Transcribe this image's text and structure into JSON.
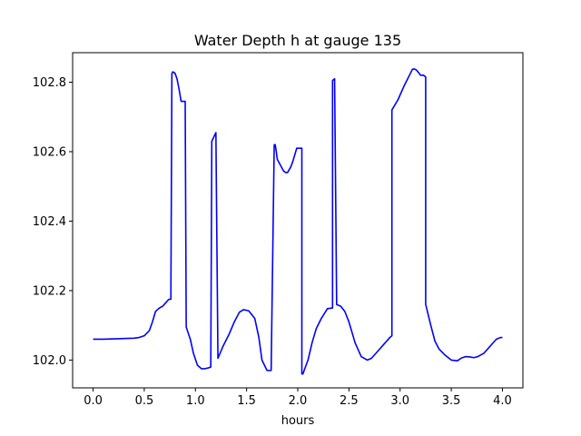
{
  "chart_data": {
    "type": "line",
    "title": "Water Depth h at gauge 135",
    "xlabel": "hours",
    "ylabel": "",
    "xlim": [
      -0.2,
      4.2
    ],
    "ylim": [
      101.92,
      102.885
    ],
    "xticks": [
      0.0,
      0.5,
      1.0,
      1.5,
      2.0,
      2.5,
      3.0,
      3.5,
      4.0
    ],
    "xtick_labels": [
      "0.0",
      "0.5",
      "1.0",
      "1.5",
      "2.0",
      "2.5",
      "3.0",
      "3.5",
      "4.0"
    ],
    "yticks": [
      102.0,
      102.2,
      102.4,
      102.6,
      102.8
    ],
    "ytick_labels": [
      "102.0",
      "102.2",
      "102.4",
      "102.6",
      "102.8"
    ],
    "grid": false,
    "series": [
      {
        "color": "#0000ff",
        "x": [
          0.0,
          0.1,
          0.2,
          0.3,
          0.4,
          0.45,
          0.5,
          0.55,
          0.58,
          0.61,
          0.64,
          0.66,
          0.68,
          0.71,
          0.74,
          0.76,
          0.77,
          0.78,
          0.78,
          0.8,
          0.82,
          0.84,
          0.86,
          0.9,
          0.91,
          0.91,
          0.95,
          0.98,
          1.02,
          1.06,
          1.09,
          1.12,
          1.15,
          1.16,
          1.16,
          1.2,
          1.2,
          1.22,
          1.27,
          1.33,
          1.38,
          1.43,
          1.47,
          1.52,
          1.58,
          1.62,
          1.65,
          1.7,
          1.74,
          1.77,
          1.78,
          1.79,
          1.8,
          1.86,
          1.88,
          1.9,
          1.93,
          1.95,
          1.99,
          2.04,
          2.04,
          2.05,
          2.1,
          2.14,
          2.18,
          2.23,
          2.29,
          2.34,
          2.34,
          2.36,
          2.36,
          2.38,
          2.42,
          2.46,
          2.5,
          2.56,
          2.62,
          2.68,
          2.72,
          2.78,
          2.84,
          2.9,
          2.92,
          2.92,
          2.98,
          3.04,
          3.1,
          3.12,
          3.14,
          3.16,
          3.18,
          3.2,
          3.21,
          3.23,
          3.25,
          3.25,
          3.3,
          3.34,
          3.38,
          3.44,
          3.5,
          3.56,
          3.6,
          3.64,
          3.68,
          3.72,
          3.76,
          3.82,
          3.88,
          3.94,
          3.98,
          4.0
        ],
        "y": [
          102.06,
          102.06,
          102.061,
          102.062,
          102.063,
          102.065,
          102.07,
          102.085,
          102.11,
          102.14,
          102.148,
          102.152,
          102.155,
          102.165,
          102.175,
          102.175,
          102.825,
          102.83,
          102.83,
          102.826,
          102.81,
          102.78,
          102.745,
          102.745,
          102.095,
          102.095,
          102.06,
          102.02,
          101.985,
          101.975,
          101.975,
          101.977,
          101.98,
          102.63,
          102.63,
          102.655,
          102.655,
          102.005,
          102.04,
          102.075,
          102.11,
          102.138,
          102.145,
          102.142,
          102.12,
          102.065,
          102.0,
          101.97,
          101.97,
          102.62,
          102.62,
          102.6,
          102.578,
          102.545,
          102.54,
          102.54,
          102.555,
          102.57,
          102.61,
          102.61,
          101.96,
          101.96,
          102.0,
          102.05,
          102.09,
          102.12,
          102.148,
          102.15,
          102.805,
          102.81,
          102.81,
          102.16,
          102.155,
          102.14,
          102.11,
          102.05,
          102.01,
          102.0,
          102.005,
          102.025,
          102.045,
          102.065,
          102.07,
          102.72,
          102.75,
          102.79,
          102.825,
          102.837,
          102.838,
          102.835,
          102.828,
          102.82,
          102.82,
          102.82,
          102.815,
          102.16,
          102.1,
          102.055,
          102.032,
          102.014,
          102.0,
          101.998,
          102.006,
          102.01,
          102.009,
          102.007,
          102.01,
          102.02,
          102.04,
          102.06,
          102.065,
          102.065
        ]
      }
    ]
  }
}
